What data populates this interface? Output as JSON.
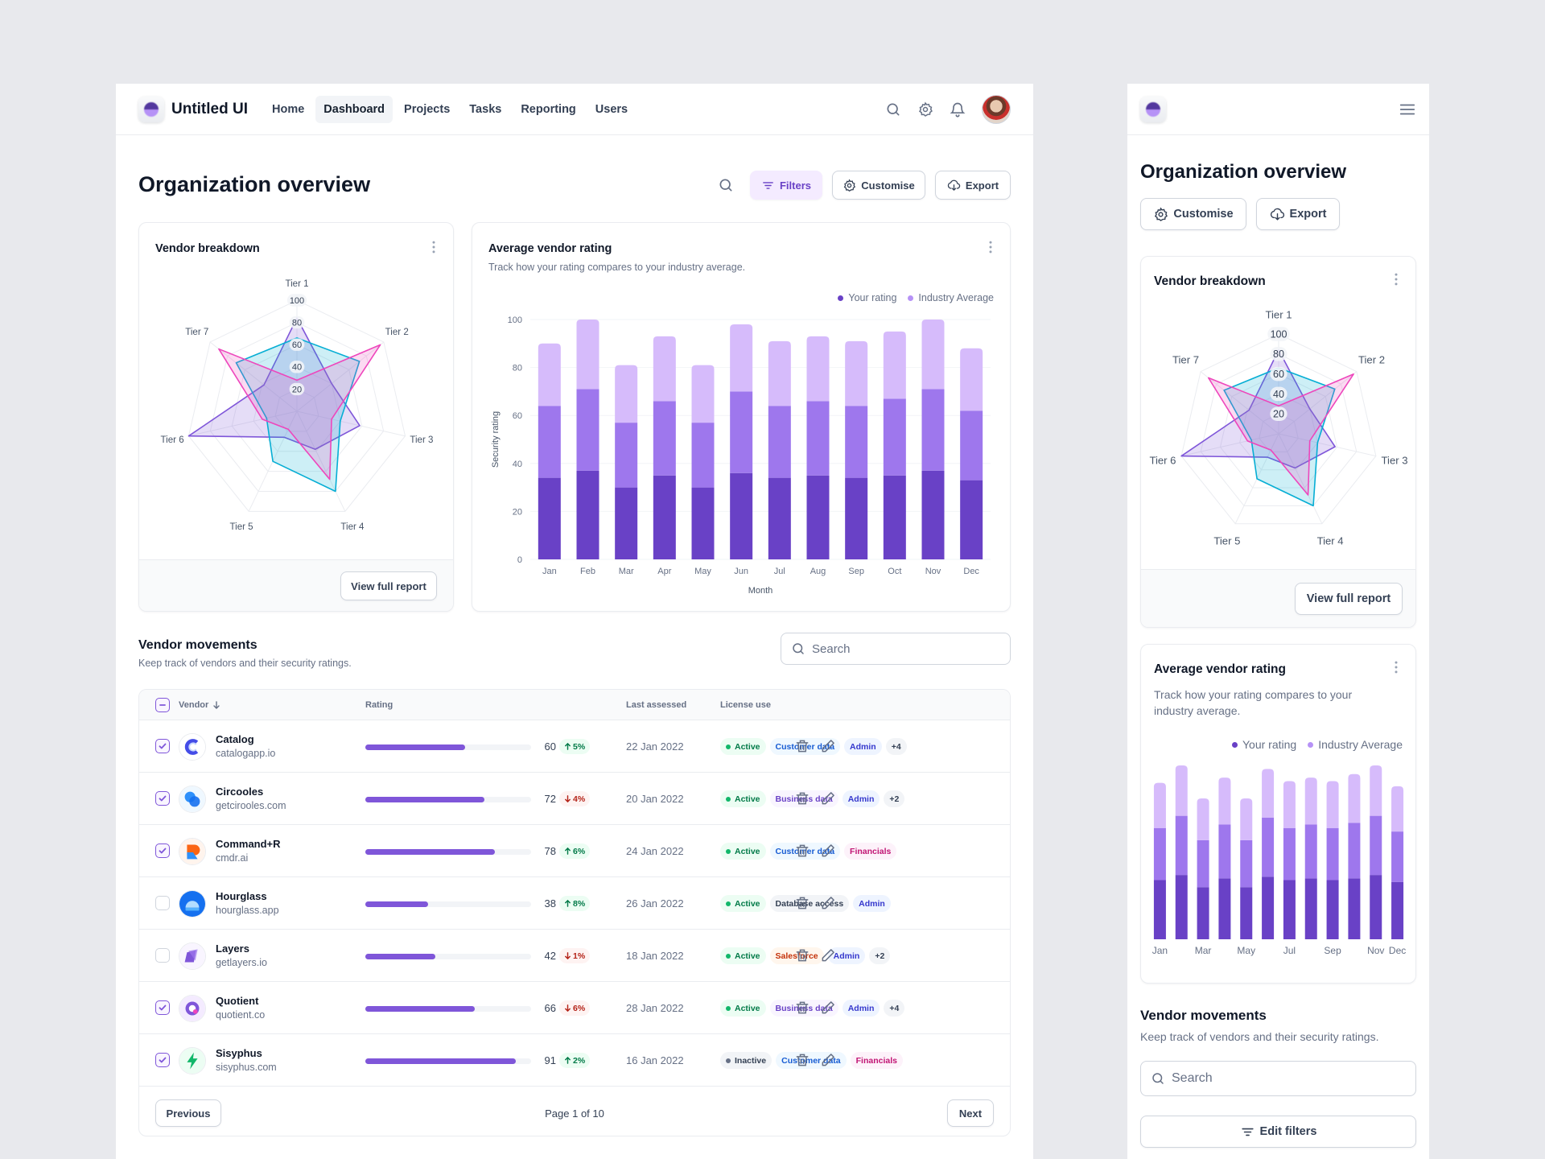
{
  "nav": {
    "brand": "Untitled UI",
    "links": [
      {
        "label": "Home",
        "active": false
      },
      {
        "label": "Dashboard",
        "active": true
      },
      {
        "label": "Projects",
        "active": false
      },
      {
        "label": "Tasks",
        "active": false
      },
      {
        "label": "Reporting",
        "active": false
      },
      {
        "label": "Users",
        "active": false
      }
    ],
    "icons": [
      "search-icon",
      "settings-icon",
      "bell-icon"
    ]
  },
  "header": {
    "title": "Organization overview",
    "filters_label": "Filters",
    "customise_label": "Customise",
    "export_label": "Export"
  },
  "vendor_breakdown": {
    "title": "Vendor breakdown",
    "view_report_label": "View full report"
  },
  "avg_rating": {
    "title": "Average vendor rating",
    "subtitle": "Track how your rating compares to your industry average.",
    "legend_your": "Your rating",
    "legend_industry": "Industry Average"
  },
  "movements": {
    "title": "Vendor movements",
    "subtitle": "Keep track of vendors and their security ratings.",
    "search_placeholder": "Search",
    "columns": {
      "vendor": "Vendor",
      "rating": "Rating",
      "last_assessed": "Last assessed",
      "license_use": "License use"
    },
    "rows": [
      {
        "name": "Catalog",
        "domain": "catalogapp.io",
        "checked": true,
        "rating": 60,
        "change": "5%",
        "dir": "up",
        "date": "22 Jan 2022",
        "logo": "catalog-logo",
        "badges": [
          {
            "t": "Active",
            "c": "green",
            "dot": true
          },
          {
            "t": "Customer data",
            "c": "blue"
          },
          {
            "t": "Admin",
            "c": "indigo"
          },
          {
            "t": "+4",
            "c": "neutral"
          }
        ]
      },
      {
        "name": "Circooles",
        "domain": "getcirooles.com",
        "checked": true,
        "rating": 72,
        "change": "4%",
        "dir": "down",
        "date": "20 Jan 2022",
        "logo": "circooles-logo",
        "badges": [
          {
            "t": "Active",
            "c": "green",
            "dot": true
          },
          {
            "t": "Business data",
            "c": "purple"
          },
          {
            "t": "Admin",
            "c": "indigo"
          },
          {
            "t": "+2",
            "c": "neutral"
          }
        ]
      },
      {
        "name": "Command+R",
        "domain": "cmdr.ai",
        "checked": true,
        "rating": 78,
        "change": "6%",
        "dir": "up",
        "date": "24 Jan 2022",
        "logo": "commandr-logo",
        "badges": [
          {
            "t": "Active",
            "c": "green",
            "dot": true
          },
          {
            "t": "Customer data",
            "c": "blue"
          },
          {
            "t": "Financials",
            "c": "pink"
          }
        ]
      },
      {
        "name": "Hourglass",
        "domain": "hourglass.app",
        "checked": false,
        "rating": 38,
        "change": "8%",
        "dir": "up",
        "date": "26 Jan 2022",
        "logo": "hourglass-logo",
        "badges": [
          {
            "t": "Active",
            "c": "green",
            "dot": true
          },
          {
            "t": "Database access",
            "c": "gray"
          },
          {
            "t": "Admin",
            "c": "indigo"
          }
        ]
      },
      {
        "name": "Layers",
        "domain": "getlayers.io",
        "checked": false,
        "rating": 42,
        "change": "1%",
        "dir": "down",
        "date": "18 Jan 2022",
        "logo": "layers-logo",
        "badges": [
          {
            "t": "Active",
            "c": "green",
            "dot": true
          },
          {
            "t": "Salesforce",
            "c": "orange"
          },
          {
            "t": "Admin",
            "c": "indigo"
          },
          {
            "t": "+2",
            "c": "neutral"
          }
        ]
      },
      {
        "name": "Quotient",
        "domain": "quotient.co",
        "checked": true,
        "rating": 66,
        "change": "6%",
        "dir": "down",
        "date": "28 Jan 2022",
        "logo": "quotient-logo",
        "badges": [
          {
            "t": "Active",
            "c": "green",
            "dot": true
          },
          {
            "t": "Business data",
            "c": "purple"
          },
          {
            "t": "Admin",
            "c": "indigo"
          },
          {
            "t": "+4",
            "c": "neutral"
          }
        ]
      },
      {
        "name": "Sisyphus",
        "domain": "sisyphus.com",
        "checked": true,
        "rating": 91,
        "change": "2%",
        "dir": "up",
        "date": "16 Jan 2022",
        "logo": "sisyphus-logo",
        "badges": [
          {
            "t": "Inactive",
            "c": "gray",
            "dot": true
          },
          {
            "t": "Customer data",
            "c": "blue"
          },
          {
            "t": "Financials",
            "c": "pink"
          }
        ]
      }
    ],
    "prev_label": "Previous",
    "next_label": "Next",
    "page_info": "Page 1 of 10"
  },
  "mobile": {
    "title": "Organization overview",
    "customise_label": "Customise",
    "export_label": "Export",
    "vendor_breakdown_title": "Vendor breakdown",
    "view_report_label": "View full report",
    "avg_title": "Average vendor rating",
    "avg_subtitle": "Track how your rating compares to your industry average.",
    "legend_your": "Your rating",
    "legend_industry": "Industry Average",
    "movements_title": "Vendor movements",
    "movements_subtitle": "Keep track of vendors and their security ratings.",
    "search_placeholder": "Search",
    "edit_filters_label": "Edit filters",
    "month_ticks": [
      "Jan",
      "Mar",
      "May",
      "Jul",
      "Sep",
      "Nov",
      "Dec"
    ]
  },
  "chart_data": [
    {
      "type": "radar",
      "categories": [
        "Tier 1",
        "Tier 2",
        "Tier 3",
        "Tier 4",
        "Tier 5",
        "Tier 6",
        "Tier 7"
      ],
      "radial_ticks": [
        20,
        40,
        60,
        80,
        100
      ],
      "rmax": 100,
      "series": [
        {
          "color": "#7f56d9",
          "values": [
            84,
            40,
            58,
            38,
            26,
            100,
            38
          ]
        },
        {
          "color": "#06aed4",
          "values": [
            66,
            72,
            40,
            80,
            50,
            28,
            70
          ]
        },
        {
          "color": "#ee46bc",
          "values": [
            28,
            96,
            32,
            68,
            18,
            32,
            90
          ]
        }
      ]
    },
    {
      "type": "bar",
      "stacked": true,
      "categories": [
        "Jan",
        "Feb",
        "Mar",
        "Apr",
        "May",
        "Jun",
        "Jul",
        "Aug",
        "Sep",
        "Oct",
        "Nov",
        "Dec"
      ],
      "xlabel": "Month",
      "ylabel": "Security rating",
      "ylim": [
        0,
        100
      ],
      "yticks": [
        0,
        20,
        40,
        60,
        80,
        100
      ],
      "legend": "top-right",
      "series": [
        {
          "color": "#6941c6",
          "values": [
            34,
            37,
            30,
            35,
            30,
            36,
            34,
            35,
            34,
            35,
            37,
            33
          ]
        },
        {
          "color": "#9e77ed",
          "values": [
            30,
            34,
            27,
            31,
            27,
            34,
            30,
            31,
            30,
            32,
            34,
            29
          ]
        },
        {
          "color": "#d6bbfb",
          "values": [
            26,
            29,
            24,
            27,
            24,
            28,
            27,
            27,
            27,
            28,
            29,
            26
          ]
        }
      ]
    }
  ]
}
